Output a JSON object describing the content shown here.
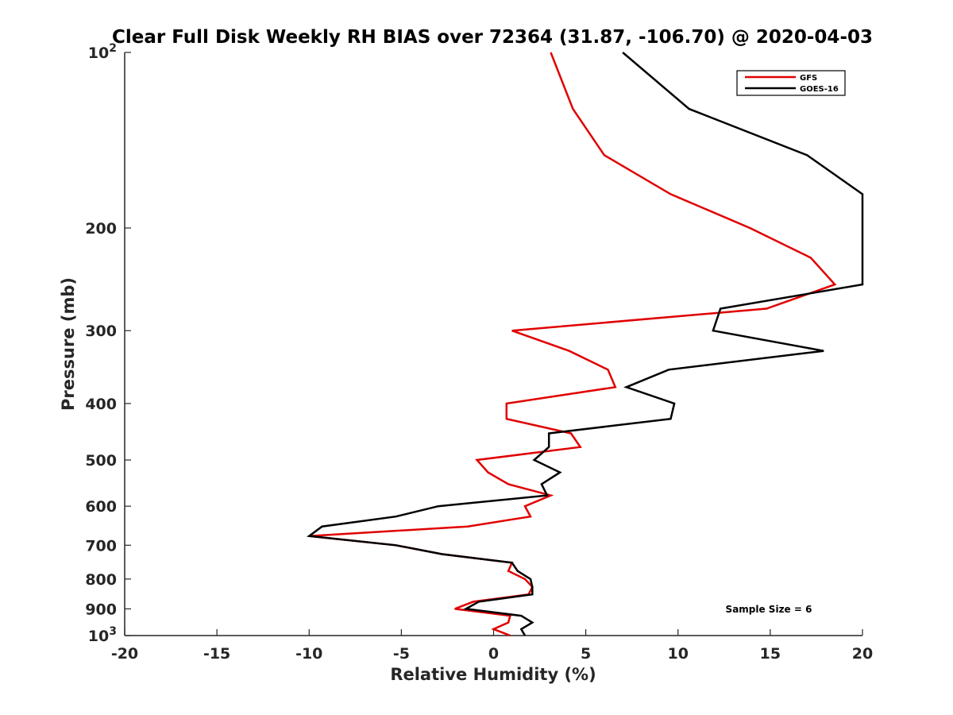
{
  "chart_data": {
    "type": "line",
    "title": "Clear Full Disk Weekly RH BIAS over 72364 (31.87, -106.70) @ 2020-04-03",
    "xlabel": "Relative Humidity (%)",
    "ylabel": "Pressure (mb)",
    "xlim": [
      -20,
      20
    ],
    "ylim": [
      100,
      1000
    ],
    "yscale": "log",
    "y_inverted": true,
    "grid": false,
    "legend_position": "top-right",
    "x_ticks": [
      "-20",
      "-15",
      "-10",
      "-5",
      "0",
      "5",
      "10",
      "15",
      "20"
    ],
    "y_ticks": [
      {
        "value": 100,
        "base": "10",
        "exp": "2"
      },
      {
        "value": 200,
        "label": "200"
      },
      {
        "value": 300,
        "label": "300"
      },
      {
        "value": 400,
        "label": "400"
      },
      {
        "value": 500,
        "label": "500"
      },
      {
        "value": 600,
        "label": "600"
      },
      {
        "value": 700,
        "label": "700"
      },
      {
        "value": 800,
        "label": "800"
      },
      {
        "value": 900,
        "label": "900"
      },
      {
        "value": 1000,
        "base": "10",
        "exp": "3"
      }
    ],
    "annotation": "Sample Size = 6",
    "series": [
      {
        "name": "GFS",
        "color": "#e00000",
        "points": [
          [
            3.1,
            100
          ],
          [
            4.3,
            125
          ],
          [
            6.0,
            150
          ],
          [
            9.6,
            175
          ],
          [
            13.9,
            200
          ],
          [
            17.2,
            225
          ],
          [
            18.5,
            250
          ],
          [
            14.8,
            275
          ],
          [
            1.0,
            300
          ],
          [
            4.1,
            325
          ],
          [
            6.2,
            350
          ],
          [
            6.6,
            375
          ],
          [
            0.7,
            400
          ],
          [
            0.7,
            425
          ],
          [
            4.2,
            450
          ],
          [
            4.7,
            475
          ],
          [
            -0.9,
            500
          ],
          [
            -0.3,
            525
          ],
          [
            0.8,
            550
          ],
          [
            3.1,
            575
          ],
          [
            1.7,
            600
          ],
          [
            2.0,
            625
          ],
          [
            -1.4,
            650
          ],
          [
            -10.0,
            675
          ],
          [
            -5.3,
            700
          ],
          [
            -2.8,
            725
          ],
          [
            1.0,
            750
          ],
          [
            0.8,
            775
          ],
          [
            1.7,
            800
          ],
          [
            2.1,
            825
          ],
          [
            1.9,
            850
          ],
          [
            -1.1,
            875
          ],
          [
            -2.1,
            900
          ],
          [
            0.9,
            925
          ],
          [
            0.8,
            950
          ],
          [
            0.0,
            975
          ],
          [
            0.9,
            1000
          ]
        ]
      },
      {
        "name": "GOES-16",
        "color": "#000000",
        "points": [
          [
            7.0,
            100
          ],
          [
            10.6,
            125
          ],
          [
            17.0,
            150
          ],
          [
            20.0,
            175
          ],
          [
            20.0,
            200
          ],
          [
            20.0,
            225
          ],
          [
            20.0,
            250
          ],
          [
            12.3,
            275
          ],
          [
            11.9,
            300
          ],
          [
            17.9,
            325
          ],
          [
            9.5,
            350
          ],
          [
            7.2,
            375
          ],
          [
            9.8,
            400
          ],
          [
            9.6,
            425
          ],
          [
            3.0,
            450
          ],
          [
            3.0,
            475
          ],
          [
            2.2,
            500
          ],
          [
            3.6,
            525
          ],
          [
            2.6,
            550
          ],
          [
            2.9,
            575
          ],
          [
            -3.0,
            600
          ],
          [
            -5.3,
            625
          ],
          [
            -9.3,
            650
          ],
          [
            -10.0,
            675
          ],
          [
            -5.3,
            700
          ],
          [
            -2.8,
            725
          ],
          [
            1.0,
            750
          ],
          [
            1.3,
            775
          ],
          [
            2.0,
            800
          ],
          [
            2.1,
            825
          ],
          [
            2.1,
            850
          ],
          [
            -0.8,
            875
          ],
          [
            -1.5,
            900
          ],
          [
            1.5,
            925
          ],
          [
            2.1,
            950
          ],
          [
            1.5,
            975
          ],
          [
            1.7,
            1000
          ]
        ]
      }
    ]
  }
}
